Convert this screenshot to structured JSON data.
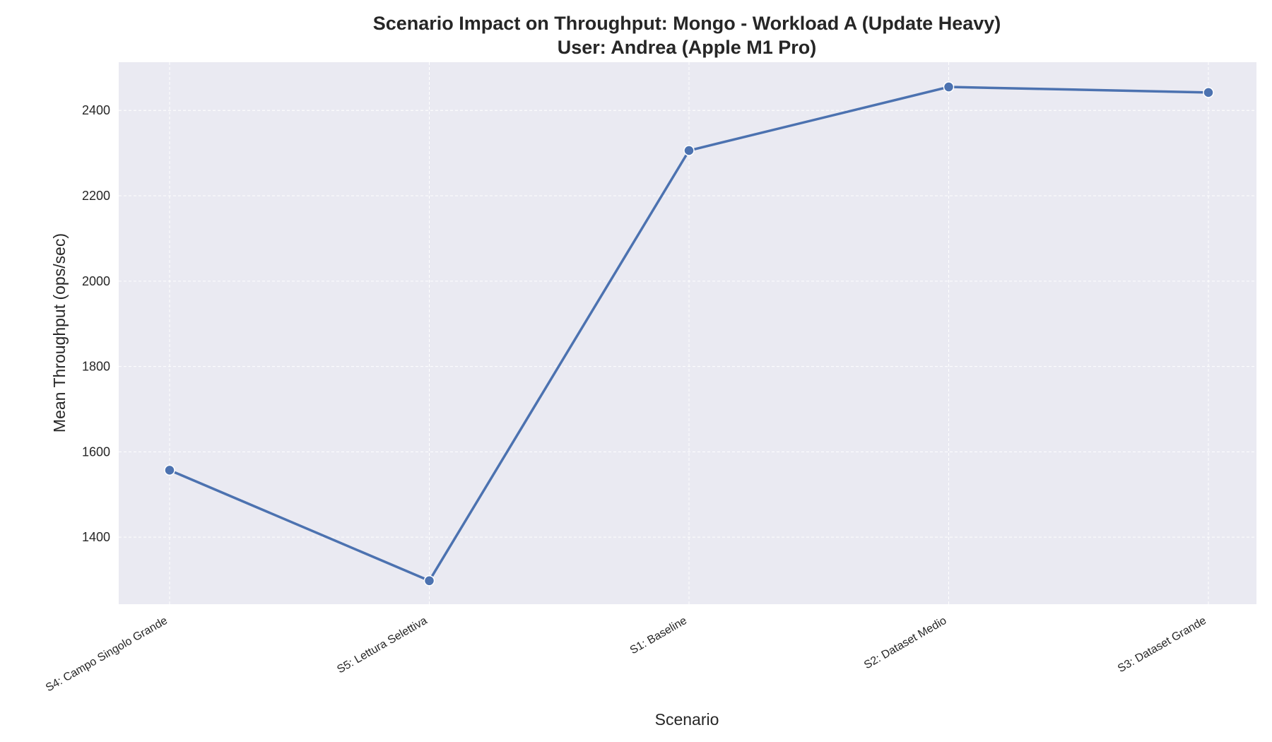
{
  "chart_data": {
    "type": "line",
    "title_line1": "Scenario Impact on Throughput: Mongo - Workload A (Update Heavy)",
    "title_line2": "User: Andrea (Apple M1 Pro)",
    "xlabel": "Scenario",
    "ylabel": "Mean Throughput (ops/sec)",
    "categories": [
      "S4: Campo Singolo Grande",
      "S5: Lettura Selettiva",
      "S1: Baseline",
      "S2: Dataset Medio",
      "S3: Dataset Grande"
    ],
    "values": [
      1557,
      1298,
      2306,
      2455,
      2442
    ],
    "ylim": [
      1243,
      2513
    ],
    "yticks": [
      "1400",
      "1600",
      "1800",
      "2000",
      "2200",
      "2400"
    ],
    "grid": true,
    "colors": {
      "line": "#4c72b0",
      "background": "#eaeaf2",
      "grid": "#ffffff"
    }
  }
}
